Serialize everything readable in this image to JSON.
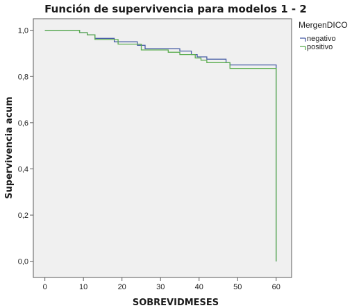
{
  "chart_data": {
    "type": "line",
    "title": "Función de supervivencia para modelos 1 - 2",
    "xlabel": "SOBREVIDMESES",
    "ylabel": "Supervivencia acum",
    "xlim": [
      -3,
      64
    ],
    "ylim": [
      -0.07,
      1.05
    ],
    "x_ticks": [
      0,
      10,
      20,
      30,
      40,
      50,
      60
    ],
    "x_tick_labels": [
      "0",
      "10",
      "20",
      "30",
      "40",
      "50",
      "60"
    ],
    "y_ticks": [
      0.0,
      0.2,
      0.4,
      0.6,
      0.8,
      1.0
    ],
    "y_tick_labels": [
      "0,0",
      "0,2",
      "0,4",
      "0,6",
      "0,8",
      "1,0"
    ],
    "grid": false,
    "legend": {
      "title": "MergenDICO",
      "placement": "top-right"
    },
    "series": [
      {
        "name": "negativo",
        "color": "#4a5fa6",
        "step": true,
        "points": [
          [
            0,
            1.0
          ],
          [
            9,
            1.0
          ],
          [
            9,
            0.99
          ],
          [
            11,
            0.99
          ],
          [
            11,
            0.98
          ],
          [
            13,
            0.98
          ],
          [
            13,
            0.965
          ],
          [
            18,
            0.965
          ],
          [
            18,
            0.95
          ],
          [
            24,
            0.95
          ],
          [
            24,
            0.935
          ],
          [
            26,
            0.935
          ],
          [
            26,
            0.92
          ],
          [
            35,
            0.92
          ],
          [
            35,
            0.91
          ],
          [
            38,
            0.91
          ],
          [
            38,
            0.895
          ],
          [
            39.5,
            0.895
          ],
          [
            39.5,
            0.885
          ],
          [
            42,
            0.885
          ],
          [
            42,
            0.875
          ],
          [
            47,
            0.875
          ],
          [
            47,
            0.86
          ],
          [
            48,
            0.86
          ],
          [
            48,
            0.85
          ],
          [
            60,
            0.85
          ],
          [
            60,
            0.0
          ]
        ]
      },
      {
        "name": "positivo",
        "color": "#5aad4e",
        "step": true,
        "points": [
          [
            0,
            1.0
          ],
          [
            9,
            1.0
          ],
          [
            9,
            0.99
          ],
          [
            11,
            0.99
          ],
          [
            11,
            0.98
          ],
          [
            13,
            0.98
          ],
          [
            13,
            0.96
          ],
          [
            19,
            0.96
          ],
          [
            19,
            0.94
          ],
          [
            25,
            0.94
          ],
          [
            25,
            0.915
          ],
          [
            32,
            0.915
          ],
          [
            32,
            0.905
          ],
          [
            35,
            0.905
          ],
          [
            35,
            0.895
          ],
          [
            39,
            0.895
          ],
          [
            39,
            0.88
          ],
          [
            40.5,
            0.88
          ],
          [
            40.5,
            0.87
          ],
          [
            42,
            0.87
          ],
          [
            42,
            0.86
          ],
          [
            48,
            0.86
          ],
          [
            48,
            0.835
          ],
          [
            60,
            0.835
          ],
          [
            60,
            0.0
          ]
        ]
      }
    ]
  }
}
